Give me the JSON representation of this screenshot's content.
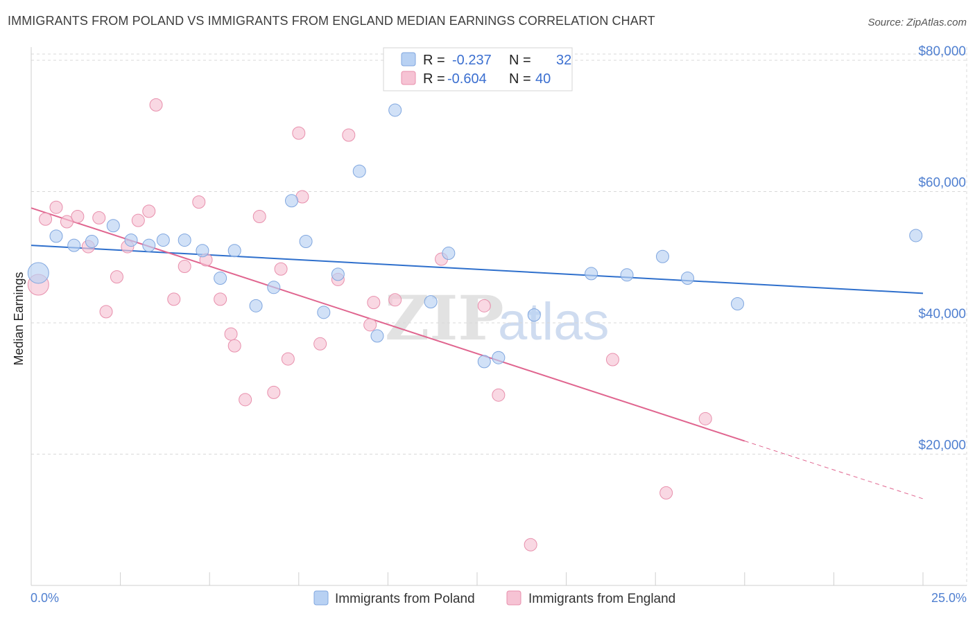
{
  "title": "IMMIGRANTS FROM POLAND VS IMMIGRANTS FROM ENGLAND MEDIAN EARNINGS CORRELATION CHART",
  "source": "Source: ZipAtlas.com",
  "watermark": {
    "zip": "ZIP",
    "atlas": "atlas"
  },
  "colors": {
    "poland_fill": "#b8d1f3",
    "poland_stroke": "#7fa6df",
    "poland_line": "#2e6fcc",
    "england_fill": "#f6c3d4",
    "england_stroke": "#e88fac",
    "england_line": "#e0658f",
    "axis_label": "#4f7fd0",
    "grid": "#d8d8d8"
  },
  "legend": {
    "rows": [
      {
        "r_label": "R =",
        "r_value": "-0.237",
        "n_label": "N =",
        "n_value": "32"
      },
      {
        "r_label": "R =",
        "r_value": "-0.604",
        "n_label": "N =",
        "n_value": "40"
      }
    ]
  },
  "chart_data": {
    "type": "scatter",
    "ylabel": "Median Earnings",
    "xlabel": "",
    "xlim": [
      0,
      25
    ],
    "ylim": [
      0,
      82000
    ],
    "x_tick_labels": {
      "min": "0.0%",
      "max": "25.0%"
    },
    "y_ticks": [
      {
        "value": 20000,
        "label": "$20,000"
      },
      {
        "value": 40000,
        "label": "$40,000"
      },
      {
        "value": 60000,
        "label": "$60,000"
      },
      {
        "value": 80000,
        "label": "$80,000"
      }
    ],
    "grid": true,
    "legend_position": "top-center",
    "series": [
      {
        "name": "Immigrants from Poland",
        "r": -0.237,
        "n": 32,
        "trend": {
          "x0": 0,
          "y0": 51800,
          "x1": 25,
          "y1": 44500
        },
        "points": [
          [
            0.2,
            47600,
            15
          ],
          [
            0.7,
            53200,
            9
          ],
          [
            1.2,
            51800,
            9
          ],
          [
            1.7,
            52400,
            9
          ],
          [
            2.3,
            54800,
            9
          ],
          [
            2.8,
            52600,
            9
          ],
          [
            3.3,
            51800,
            9
          ],
          [
            3.7,
            52600,
            9
          ],
          [
            4.3,
            52600,
            9
          ],
          [
            4.8,
            51000,
            9
          ],
          [
            5.3,
            46800,
            9
          ],
          [
            5.7,
            51000,
            9
          ],
          [
            6.3,
            42600,
            9
          ],
          [
            6.8,
            45400,
            9
          ],
          [
            7.3,
            58600,
            9
          ],
          [
            7.7,
            52400,
            9
          ],
          [
            8.2,
            41600,
            9
          ],
          [
            8.6,
            47400,
            9
          ],
          [
            9.2,
            63100,
            9
          ],
          [
            9.7,
            38000,
            9
          ],
          [
            10.2,
            72400,
            9
          ],
          [
            11.2,
            43200,
            9
          ],
          [
            11.7,
            50600,
            9
          ],
          [
            12.7,
            34100,
            9
          ],
          [
            13.1,
            34700,
            9
          ],
          [
            14.1,
            41200,
            9
          ],
          [
            15.7,
            47500,
            9
          ],
          [
            16.7,
            47300,
            9
          ],
          [
            17.7,
            50100,
            9
          ],
          [
            18.4,
            46800,
            9
          ],
          [
            19.8,
            42900,
            9
          ],
          [
            24.8,
            53300,
            9
          ]
        ]
      },
      {
        "name": "Immigrants from England",
        "r": -0.604,
        "n": 40,
        "trend": {
          "x0": 0,
          "y0": 57500,
          "x1": 20,
          "y1": 22000,
          "dash_x1": 25,
          "dash_y1": 13200
        },
        "points": [
          [
            0.2,
            45800,
            15
          ],
          [
            0.4,
            55800,
            9
          ],
          [
            0.7,
            57600,
            9
          ],
          [
            1.0,
            55400,
            9
          ],
          [
            1.3,
            56200,
            9
          ],
          [
            1.6,
            51600,
            9
          ],
          [
            1.9,
            56000,
            9
          ],
          [
            2.1,
            41700,
            9
          ],
          [
            2.4,
            47000,
            9
          ],
          [
            2.7,
            51600,
            9
          ],
          [
            3.0,
            55600,
            9
          ],
          [
            3.3,
            57000,
            9
          ],
          [
            3.5,
            73200,
            9
          ],
          [
            4.0,
            43600,
            9
          ],
          [
            4.3,
            48600,
            9
          ],
          [
            4.7,
            58400,
            9
          ],
          [
            4.9,
            49600,
            9
          ],
          [
            5.3,
            43600,
            9
          ],
          [
            5.6,
            38300,
            9
          ],
          [
            5.7,
            36500,
            9
          ],
          [
            6.0,
            28300,
            9
          ],
          [
            6.4,
            56200,
            9
          ],
          [
            6.8,
            29400,
            9
          ],
          [
            7.0,
            48200,
            9
          ],
          [
            7.2,
            34500,
            9
          ],
          [
            7.5,
            68900,
            9
          ],
          [
            7.6,
            59200,
            9
          ],
          [
            8.1,
            36800,
            9
          ],
          [
            8.6,
            46600,
            9
          ],
          [
            8.9,
            68600,
            9
          ],
          [
            9.5,
            39700,
            9
          ],
          [
            9.6,
            43100,
            9
          ],
          [
            10.2,
            43500,
            9
          ],
          [
            11.5,
            49700,
            9
          ],
          [
            12.7,
            42600,
            9
          ],
          [
            13.1,
            29000,
            9
          ],
          [
            14.0,
            6200,
            9
          ],
          [
            16.3,
            34400,
            9
          ],
          [
            17.8,
            14100,
            9
          ],
          [
            18.9,
            25400,
            9
          ]
        ]
      }
    ]
  }
}
